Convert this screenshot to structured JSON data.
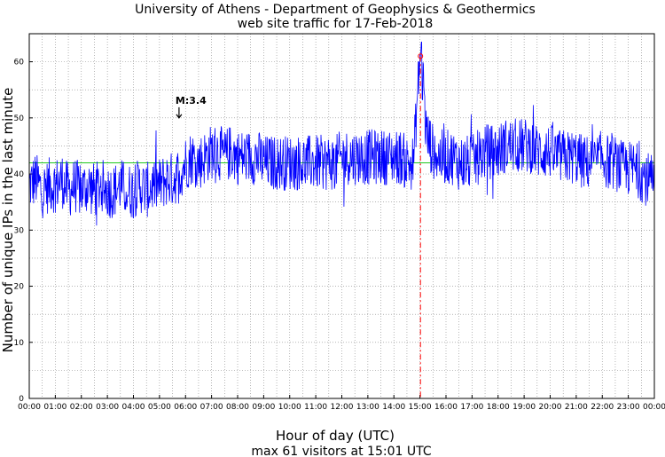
{
  "chart_data": {
    "type": "line",
    "title": "University of Athens - Department of Geophysics & Geothermics",
    "subtitle": "web site traffic for 17-Feb-2018",
    "xlabel": "Hour of day (UTC)",
    "ylabel": "Number of unique IPs in the last minute",
    "footer": "max 61 visitors at 15:01 UTC",
    "x_ticks": [
      "00:00",
      "01:00",
      "02:00",
      "03:00",
      "04:00",
      "05:00",
      "06:00",
      "07:00",
      "08:00",
      "09:00",
      "10:00",
      "11:00",
      "12:00",
      "13:00",
      "14:00",
      "15:00",
      "16:00",
      "17:00",
      "18:00",
      "19:00",
      "20:00",
      "21:00",
      "22:00",
      "23:00",
      "00:00"
    ],
    "y_ticks": [
      0,
      10,
      20,
      30,
      40,
      50,
      60
    ],
    "xlim": [
      0,
      24
    ],
    "ylim": [
      0,
      65
    ],
    "grid": true,
    "series": [
      {
        "color": "#0000ff",
        "x": [
          0,
          0.25,
          0.5,
          0.75,
          1,
          1.25,
          1.5,
          1.75,
          2,
          2.25,
          2.5,
          2.75,
          3,
          3.25,
          3.5,
          3.75,
          4,
          4.25,
          4.5,
          4.75,
          5,
          5.25,
          5.5,
          5.75,
          6,
          6.25,
          6.5,
          6.75,
          7,
          7.25,
          7.5,
          7.75,
          8,
          8.25,
          8.5,
          8.75,
          9,
          9.25,
          9.5,
          9.75,
          10,
          10.25,
          10.5,
          10.75,
          11,
          11.25,
          11.5,
          11.75,
          12,
          12.25,
          12.5,
          12.75,
          13,
          13.25,
          13.5,
          13.75,
          14,
          14.25,
          14.5,
          14.75,
          15,
          15.25,
          15.5,
          15.75,
          16,
          16.25,
          16.5,
          16.75,
          17,
          17.25,
          17.5,
          17.75,
          18,
          18.25,
          18.5,
          18.75,
          19,
          19.25,
          19.5,
          19.75,
          20,
          20.25,
          20.5,
          20.75,
          21,
          21.25,
          21.5,
          21.75,
          22,
          22.25,
          22.5,
          22.75,
          23,
          23.25,
          23.5,
          23.75,
          24
        ],
        "y": [
          38,
          39,
          37,
          38,
          38,
          39,
          37,
          38,
          37,
          38,
          37,
          38,
          37,
          37,
          38,
          37,
          37,
          38,
          37,
          38,
          38,
          39,
          39,
          40,
          42,
          43,
          42,
          43,
          44,
          44,
          43,
          44,
          43,
          43,
          43,
          43,
          42,
          42,
          42,
          42,
          42,
          42,
          42,
          42,
          42,
          42,
          42,
          42,
          43,
          43,
          43,
          43,
          43,
          43,
          43,
          43,
          43,
          43,
          42,
          42,
          61,
          47,
          44,
          43,
          43,
          43,
          42,
          42,
          42,
          43,
          44,
          44,
          44,
          45,
          45,
          45,
          45,
          45,
          44,
          44,
          44,
          43,
          43,
          43,
          43,
          42,
          42,
          42,
          43,
          42,
          42,
          41,
          41,
          41,
          40,
          39,
          38
        ]
      },
      {
        "name": "",
        "color": "#00c000",
        "x": [
          0,
          24
        ],
        "y": [
          42,
          42
        ]
      }
    ],
    "annotations": [
      {
        "text": "M:3.4",
        "x": 5.75,
        "y": 50,
        "marker": "arrow-down"
      }
    ],
    "max_marker": {
      "x": 15.02,
      "y": 61,
      "color": "#ff0000"
    }
  }
}
